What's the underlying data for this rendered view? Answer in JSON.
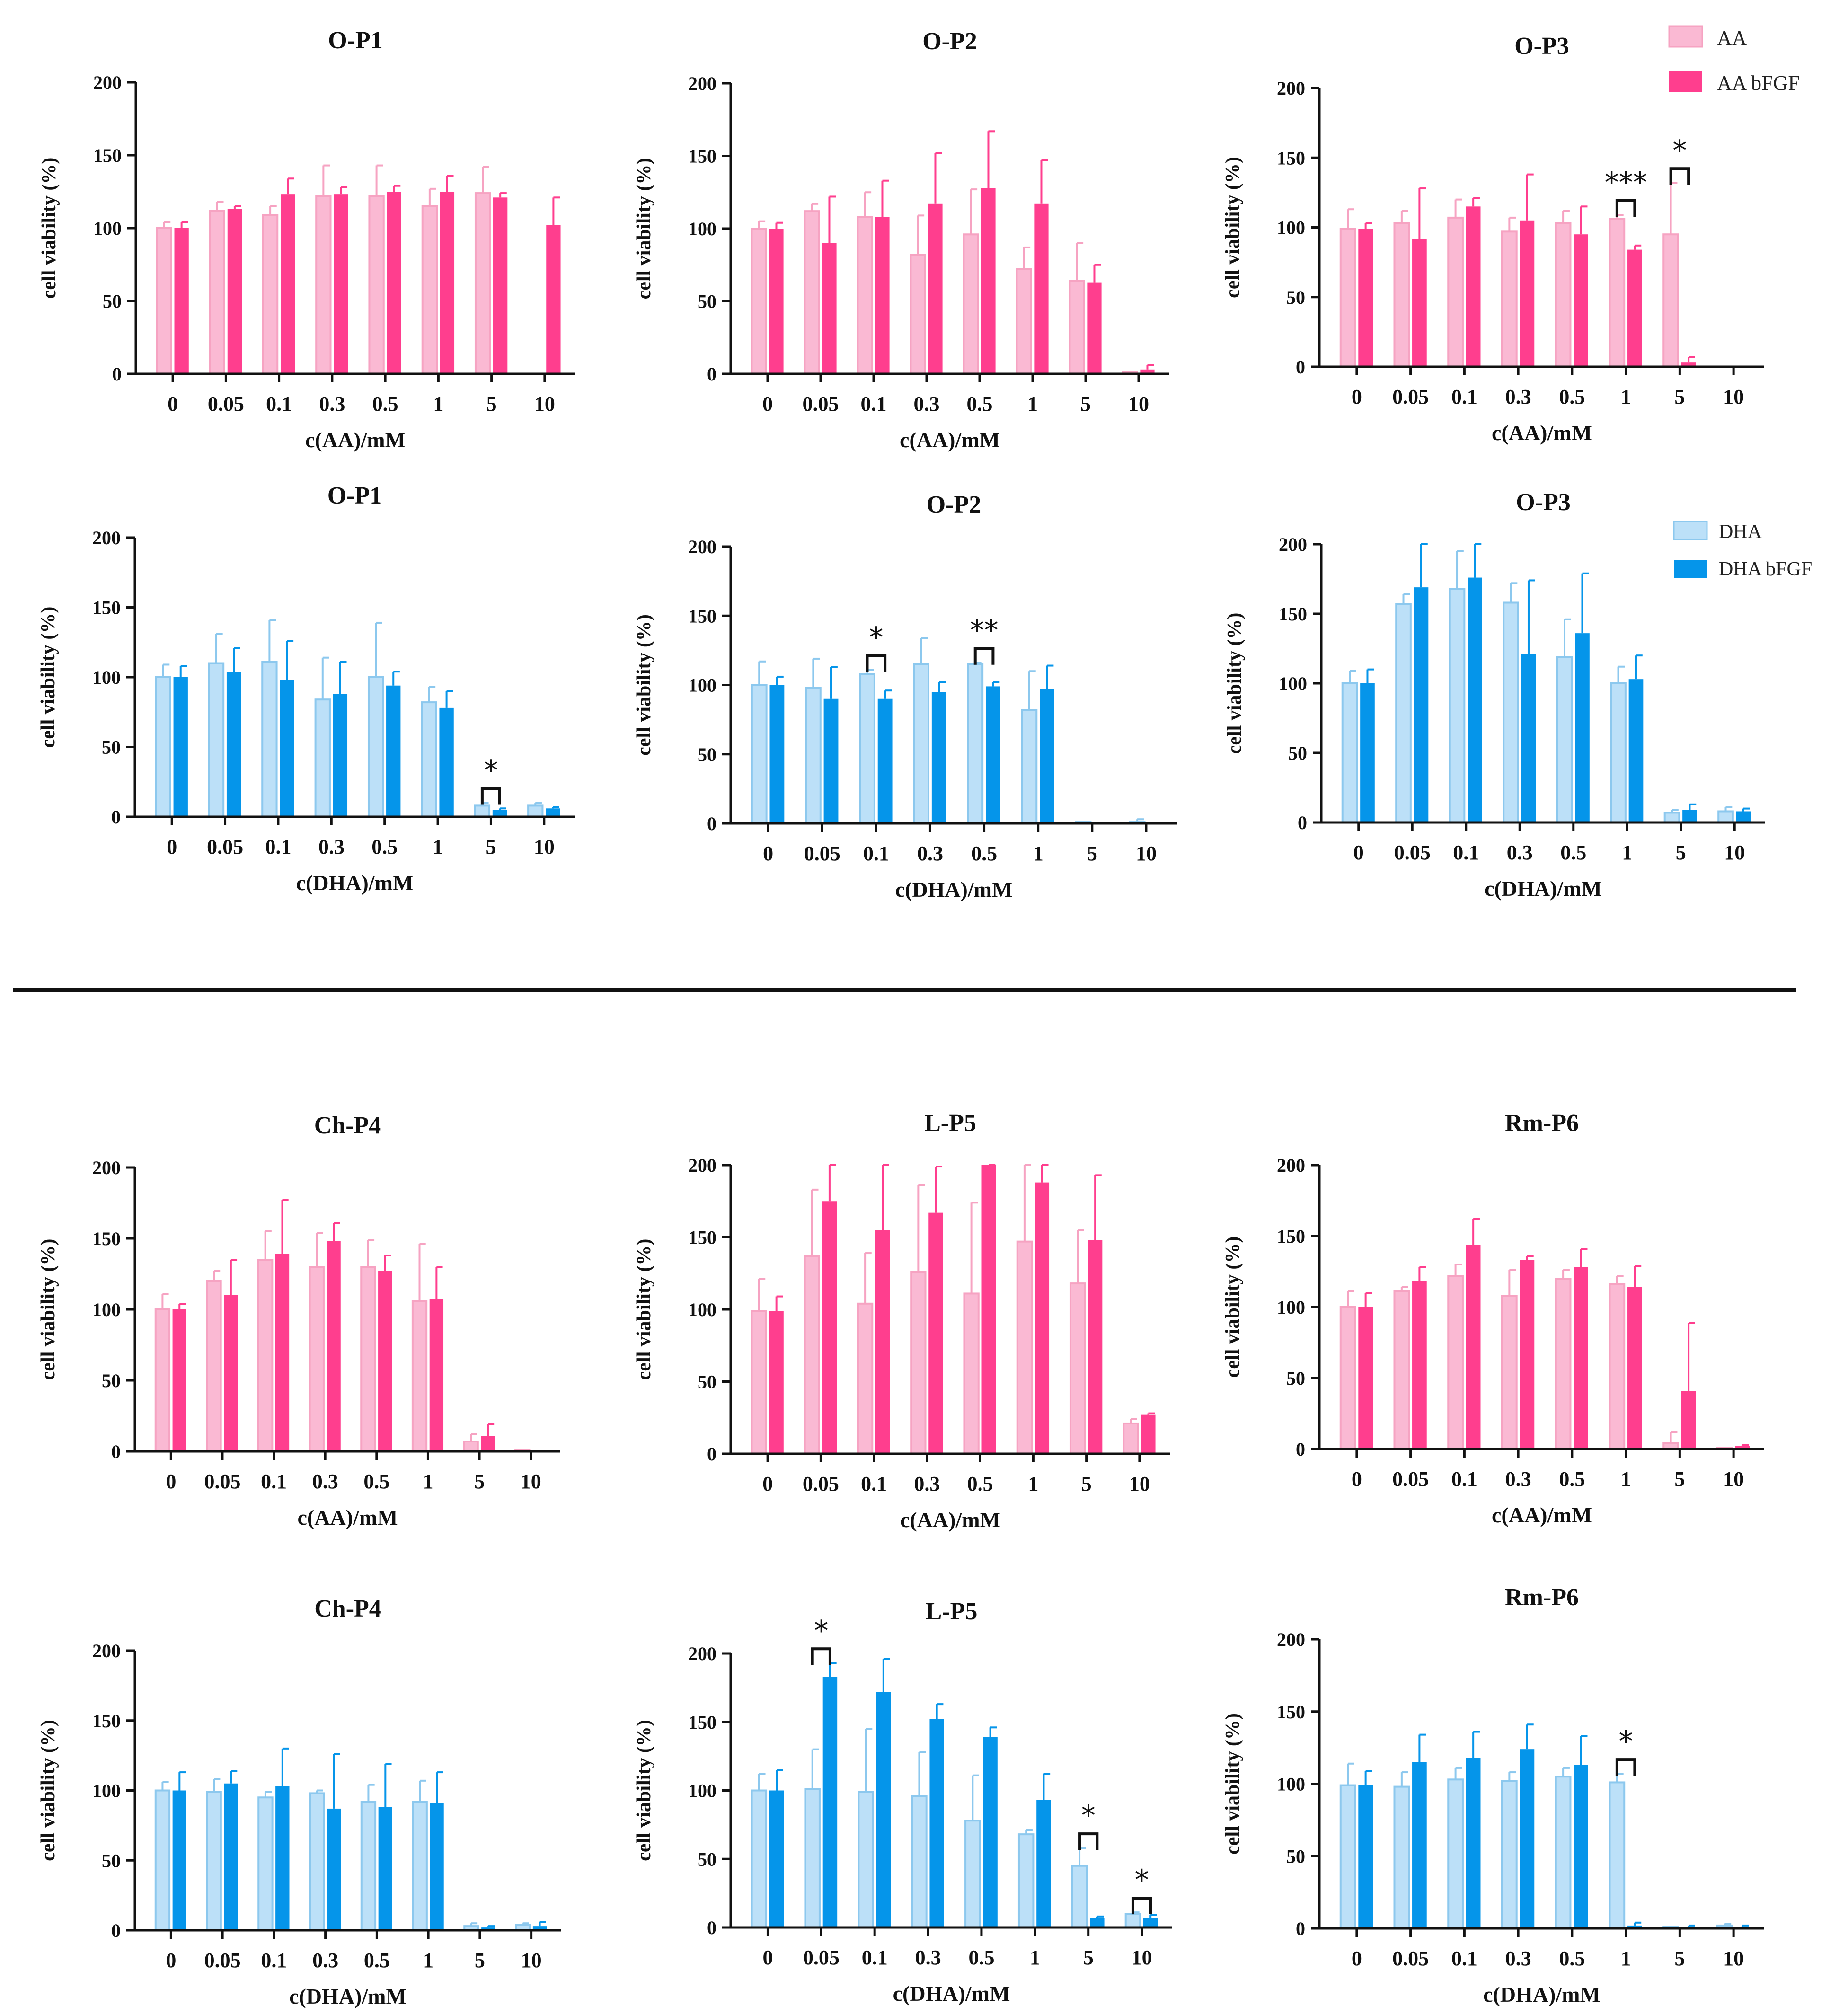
{
  "colors": {
    "aa_light": "#FAB9D3",
    "aa_light_edge": "#F6A3C2",
    "aa_dark": "#FF3E8E",
    "dha_light": "#BCE0F8",
    "dha_light_edge": "#8CC8EE",
    "dha_dark": "#0595EA",
    "axis": "#111111",
    "divider": "#111111"
  },
  "legends": [
    {
      "anchor": "top-right-row1",
      "entries": [
        {
          "label": "AA",
          "color_key": "aa_light"
        },
        {
          "label": "AA   bFGF",
          "color_key": "aa_dark"
        }
      ]
    },
    {
      "anchor": "top-right-row2",
      "entries": [
        {
          "label": "DHA",
          "color_key": "dha_light"
        },
        {
          "label": "DHA   bFGF",
          "color_key": "dha_dark"
        }
      ]
    }
  ],
  "chart_data": [
    {
      "id": "aa-op1",
      "type": "bar",
      "title": "O-P1",
      "xlabel": "c(AA)/mM",
      "ylabel": "cell viability (%)",
      "ylim": [
        0,
        200
      ],
      "yticks": [
        0,
        50,
        100,
        150,
        200
      ],
      "palette": "aa",
      "categories": [
        "0",
        "0.05",
        "0.1",
        "0.3",
        "0.5",
        "1",
        "5",
        "10"
      ],
      "series": [
        {
          "name": "AA",
          "values": [
            100,
            112,
            109,
            122,
            122,
            115,
            124,
            0
          ],
          "errors": [
            4,
            6,
            6,
            21,
            21,
            12,
            18,
            0
          ]
        },
        {
          "name": "AA   bFGF",
          "values": [
            100,
            113,
            123,
            123,
            125,
            125,
            121,
            102
          ],
          "errors": [
            4,
            2,
            11,
            5,
            4,
            11,
            3,
            19
          ]
        }
      ],
      "significance": []
    },
    {
      "id": "aa-op2",
      "type": "bar",
      "title": "O-P2",
      "xlabel": "c(AA)/mM",
      "ylabel": "cell viability (%)",
      "ylim": [
        0,
        200
      ],
      "yticks": [
        0,
        50,
        100,
        150,
        200
      ],
      "palette": "aa",
      "categories": [
        "0",
        "0.05",
        "0.1",
        "0.3",
        "0.5",
        "1",
        "5",
        "10"
      ],
      "series": [
        {
          "name": "AA",
          "values": [
            100,
            112,
            108,
            82,
            96,
            72,
            64,
            1
          ],
          "errors": [
            5,
            5,
            17,
            27,
            31,
            15,
            26,
            0
          ]
        },
        {
          "name": "AA   bFGF",
          "values": [
            100,
            90,
            108,
            117,
            128,
            117,
            63,
            3
          ],
          "errors": [
            4,
            32,
            25,
            35,
            39,
            30,
            12,
            3
          ]
        }
      ],
      "significance": []
    },
    {
      "id": "aa-op3",
      "type": "bar",
      "title": "O-P3",
      "xlabel": "c(AA)/mM",
      "ylabel": "cell viability (%)",
      "ylim": [
        0,
        200
      ],
      "yticks": [
        0,
        50,
        100,
        150,
        200
      ],
      "palette": "aa",
      "categories": [
        "0",
        "0.05",
        "0.1",
        "0.3",
        "0.5",
        "1",
        "5",
        "10"
      ],
      "series": [
        {
          "name": "AA",
          "values": [
            99,
            103,
            107,
            97,
            103,
            106,
            95,
            0
          ],
          "errors": [
            14,
            9,
            13,
            10,
            9,
            3,
            37,
            0
          ]
        },
        {
          "name": "AA   bFGF",
          "values": [
            99,
            92,
            115,
            105,
            95,
            84,
            3,
            0
          ],
          "errors": [
            4,
            36,
            6,
            33,
            20,
            3,
            4,
            0
          ]
        }
      ],
      "significance": [
        {
          "category_index": 5,
          "label": "***"
        },
        {
          "category_index": 6,
          "label": "*"
        }
      ]
    },
    {
      "id": "dha-op1",
      "type": "bar",
      "title": "O-P1",
      "xlabel": "c(DHA)/mM",
      "ylabel": "cell viability (%)",
      "ylim": [
        0,
        200
      ],
      "yticks": [
        0,
        50,
        100,
        150,
        200
      ],
      "palette": "dha",
      "categories": [
        "0",
        "0.05",
        "0.1",
        "0.3",
        "0.5",
        "1",
        "5",
        "10"
      ],
      "series": [
        {
          "name": "DHA",
          "values": [
            100,
            110,
            111,
            84,
            100,
            82,
            8,
            8
          ],
          "errors": [
            9,
            21,
            30,
            30,
            39,
            11,
            2,
            2
          ]
        },
        {
          "name": "DHA   bFGF",
          "values": [
            100,
            104,
            98,
            88,
            94,
            78,
            5,
            6
          ],
          "errors": [
            8,
            17,
            28,
            23,
            10,
            12,
            1,
            1
          ]
        }
      ],
      "significance": [
        {
          "category_index": 6,
          "label": "*"
        }
      ]
    },
    {
      "id": "dha-op2",
      "type": "bar",
      "title": "O-P2",
      "xlabel": "c(DHA)/mM",
      "ylabel": "cell viability (%)",
      "ylim": [
        0,
        200
      ],
      "yticks": [
        0,
        50,
        100,
        150,
        200
      ],
      "palette": "dha",
      "categories": [
        "0",
        "0.05",
        "0.1",
        "0.3",
        "0.5",
        "1",
        "5",
        "10"
      ],
      "series": [
        {
          "name": "DHA",
          "values": [
            100,
            98,
            108,
            115,
            115,
            82,
            1,
            1
          ],
          "errors": [
            17,
            21,
            3,
            19,
            1,
            28,
            0,
            2
          ]
        },
        {
          "name": "DHA   bFGF",
          "values": [
            100,
            90,
            90,
            95,
            99,
            97,
            1,
            1
          ],
          "errors": [
            6,
            23,
            6,
            7,
            3,
            17,
            0,
            0
          ]
        }
      ],
      "significance": [
        {
          "category_index": 2,
          "label": "*"
        },
        {
          "category_index": 4,
          "label": "**"
        }
      ]
    },
    {
      "id": "dha-op3",
      "type": "bar",
      "title": "O-P3",
      "xlabel": "c(DHA)/mM",
      "ylabel": "cell viability (%)",
      "ylim": [
        0,
        200
      ],
      "yticks": [
        0,
        50,
        100,
        150,
        200
      ],
      "palette": "dha",
      "categories": [
        "0",
        "0.05",
        "0.1",
        "0.3",
        "0.5",
        "1",
        "5",
        "10"
      ],
      "series": [
        {
          "name": "DHA",
          "values": [
            100,
            157,
            168,
            158,
            119,
            100,
            7,
            8
          ],
          "errors": [
            9,
            7,
            27,
            14,
            27,
            12,
            2,
            3
          ]
        },
        {
          "name": "DHA   bFGF",
          "values": [
            100,
            169,
            176,
            121,
            136,
            103,
            9,
            8
          ],
          "errors": [
            10,
            31,
            25,
            53,
            43,
            17,
            4,
            2
          ]
        }
      ],
      "significance": []
    },
    {
      "id": "aa-chp4",
      "type": "bar",
      "title": "Ch-P4",
      "xlabel": "c(AA)/mM",
      "ylabel": "cell viability (%)",
      "ylim": [
        0,
        200
      ],
      "yticks": [
        0,
        50,
        100,
        150,
        200
      ],
      "palette": "aa",
      "categories": [
        "0",
        "0.05",
        "0.1",
        "0.3",
        "0.5",
        "1",
        "5",
        "10"
      ],
      "series": [
        {
          "name": "AA",
          "values": [
            100,
            120,
            135,
            130,
            130,
            106,
            7,
            1
          ],
          "errors": [
            11,
            7,
            20,
            24,
            19,
            40,
            5,
            0
          ]
        },
        {
          "name": "AA   bFGF",
          "values": [
            100,
            110,
            139,
            148,
            127,
            107,
            11,
            1
          ],
          "errors": [
            4,
            25,
            38,
            13,
            11,
            23,
            8,
            0
          ]
        }
      ],
      "significance": []
    },
    {
      "id": "aa-lp5",
      "type": "bar",
      "title": "L-P5",
      "xlabel": "c(AA)/mM",
      "ylabel": "cell viability (%)",
      "ylim": [
        0,
        200
      ],
      "yticks": [
        0,
        50,
        100,
        150,
        200
      ],
      "palette": "aa",
      "categories": [
        "0",
        "0.05",
        "0.1",
        "0.3",
        "0.5",
        "1",
        "5",
        "10"
      ],
      "series": [
        {
          "name": "AA",
          "values": [
            99,
            137,
            104,
            126,
            111,
            147,
            118,
            21
          ],
          "errors": [
            22,
            46,
            35,
            60,
            63,
            60,
            37,
            3
          ]
        },
        {
          "name": "AA   bFGF",
          "values": [
            99,
            175,
            155,
            167,
            200,
            188,
            148,
            27
          ],
          "errors": [
            10,
            40,
            50,
            32,
            30,
            30,
            45,
            1
          ]
        }
      ],
      "significance": []
    },
    {
      "id": "aa-rmp6",
      "type": "bar",
      "title": "Rm-P6",
      "xlabel": "c(AA)/mM",
      "ylabel": "cell viability (%)",
      "ylim": [
        0,
        200
      ],
      "yticks": [
        0,
        50,
        100,
        150,
        200
      ],
      "palette": "aa",
      "categories": [
        "0",
        "0.05",
        "0.1",
        "0.3",
        "0.5",
        "1",
        "5",
        "10"
      ],
      "series": [
        {
          "name": "AA",
          "values": [
            100,
            111,
            122,
            108,
            120,
            116,
            4,
            1
          ],
          "errors": [
            11,
            3,
            8,
            18,
            6,
            6,
            8,
            0
          ]
        },
        {
          "name": "AA   bFGF",
          "values": [
            100,
            118,
            144,
            133,
            128,
            114,
            41,
            2
          ],
          "errors": [
            10,
            10,
            18,
            3,
            13,
            15,
            48,
            1
          ]
        }
      ],
      "significance": []
    },
    {
      "id": "dha-chp4",
      "type": "bar",
      "title": "Ch-P4",
      "xlabel": "c(DHA)/mM",
      "ylabel": "cell viability (%)",
      "ylim": [
        0,
        200
      ],
      "yticks": [
        0,
        50,
        100,
        150,
        200
      ],
      "palette": "dha",
      "categories": [
        "0",
        "0.05",
        "0.1",
        "0.3",
        "0.5",
        "1",
        "5",
        "10"
      ],
      "series": [
        {
          "name": "DHA",
          "values": [
            100,
            99,
            95,
            98,
            92,
            92,
            3,
            4
          ],
          "errors": [
            6,
            9,
            4,
            2,
            12,
            15,
            2,
            1
          ]
        },
        {
          "name": "DHA   bFGF",
          "values": [
            100,
            105,
            103,
            87,
            88,
            91,
            2,
            3
          ],
          "errors": [
            13,
            9,
            27,
            39,
            31,
            22,
            1,
            3
          ]
        }
      ],
      "significance": []
    },
    {
      "id": "dha-lp5",
      "type": "bar",
      "title": "L-P5",
      "xlabel": "c(DHA)/mM",
      "ylabel": "cell viability (%)",
      "ylim": [
        0,
        200
      ],
      "yticks": [
        0,
        50,
        100,
        150,
        200
      ],
      "palette": "dha",
      "categories": [
        "0",
        "0.05",
        "0.1",
        "0.3",
        "0.5",
        "1",
        "5",
        "10"
      ],
      "series": [
        {
          "name": "DHA",
          "values": [
            100,
            101,
            99,
            96,
            78,
            68,
            45,
            10
          ],
          "errors": [
            12,
            29,
            46,
            32,
            33,
            3,
            13,
            1
          ]
        },
        {
          "name": "DHA   bFGF",
          "values": [
            100,
            183,
            172,
            152,
            139,
            93,
            7,
            7
          ],
          "errors": [
            15,
            10,
            24,
            11,
            7,
            19,
            1,
            2
          ]
        }
      ],
      "significance": [
        {
          "category_index": 1,
          "label": "*"
        },
        {
          "category_index": 6,
          "label": "*"
        },
        {
          "category_index": 7,
          "label": "*"
        }
      ]
    },
    {
      "id": "dha-rmp6",
      "type": "bar",
      "title": "Rm-P6",
      "xlabel": "c(DHA)/mM",
      "ylabel": "cell viability (%)",
      "ylim": [
        0,
        200
      ],
      "yticks": [
        0,
        50,
        100,
        150,
        200
      ],
      "palette": "dha",
      "categories": [
        "0",
        "0.05",
        "0.1",
        "0.3",
        "0.5",
        "1",
        "5",
        "10"
      ],
      "series": [
        {
          "name": "DHA",
          "values": [
            99,
            98,
            103,
            102,
            105,
            101,
            1,
            2
          ],
          "errors": [
            15,
            10,
            8,
            6,
            6,
            6,
            0,
            1
          ]
        },
        {
          "name": "DHA   bFGF",
          "values": [
            99,
            115,
            118,
            124,
            113,
            2,
            1,
            1
          ],
          "errors": [
            10,
            19,
            18,
            17,
            20,
            2,
            1,
            1
          ]
        }
      ],
      "significance": [
        {
          "category_index": 5,
          "label": "*"
        }
      ]
    }
  ]
}
